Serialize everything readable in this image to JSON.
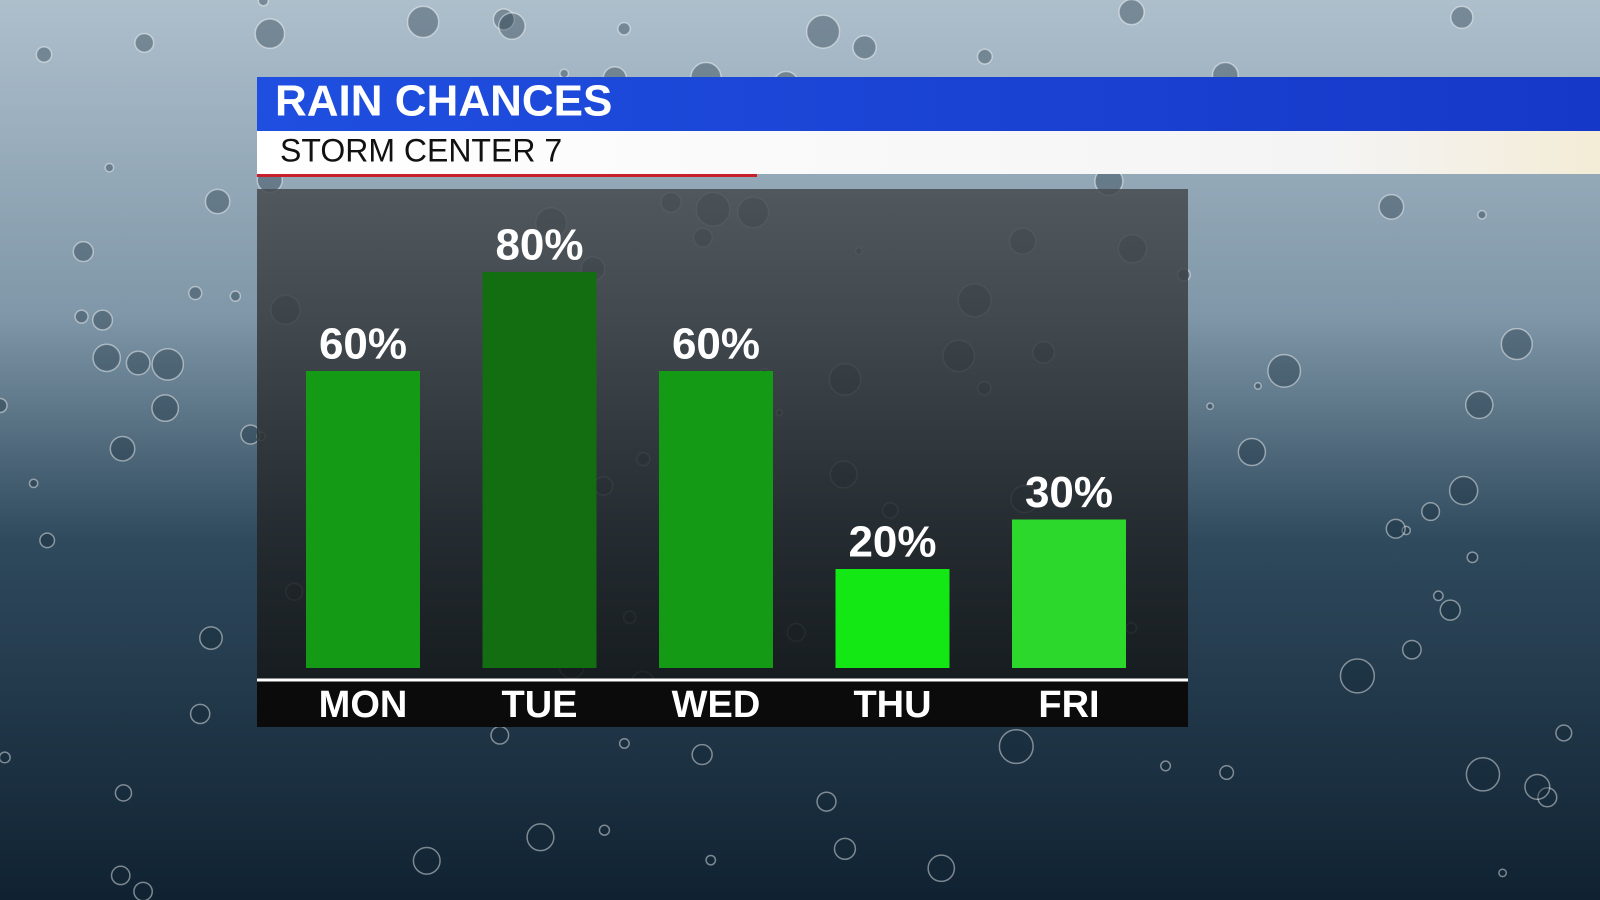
{
  "chart_data": {
    "type": "bar",
    "title": "RAIN CHANCES",
    "subtitle": "STORM CENTER 7",
    "categories": [
      "MON",
      "TUE",
      "WED",
      "THU",
      "FRI"
    ],
    "values": [
      60,
      80,
      60,
      20,
      30
    ],
    "value_labels": [
      "60%",
      "80%",
      "60%",
      "20%",
      "30%"
    ],
    "colors": [
      "#149a14",
      "#126e10",
      "#149a14",
      "#14e814",
      "#2bd82b"
    ]
  }
}
